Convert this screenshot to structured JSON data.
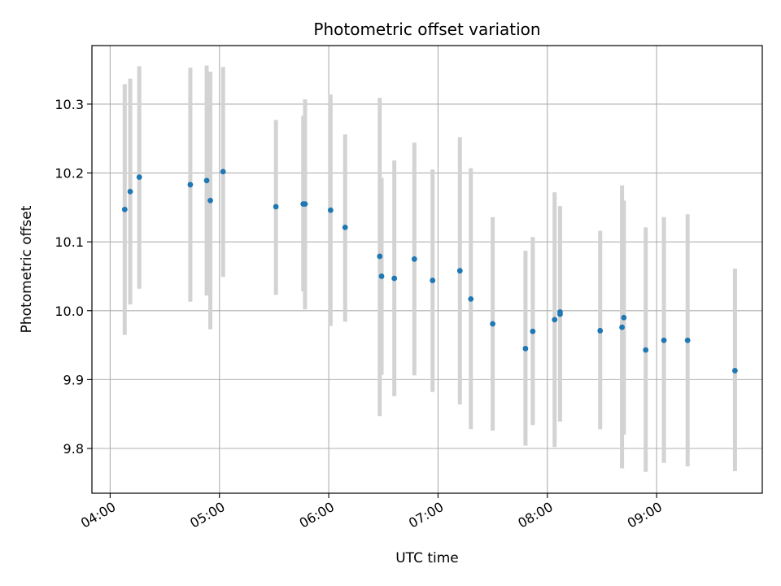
{
  "chart_data": {
    "type": "scatter",
    "title": "Photometric offset variation",
    "xlabel": "UTC time",
    "ylabel": "Photometric offset",
    "xlim": [
      "03:50",
      "09:58"
    ],
    "ylim": [
      9.735,
      10.385
    ],
    "grid": true,
    "x_ticks": [
      "04:00",
      "05:00",
      "06:00",
      "07:00",
      "08:00",
      "09:00"
    ],
    "y_ticks": [
      9.8,
      9.9,
      10.0,
      10.1,
      10.2,
      10.3
    ],
    "y_tick_labels": [
      "9.8",
      "9.9",
      "10.0",
      "10.1",
      "10.2",
      "10.3"
    ],
    "colors": {
      "points": "#1f77b4",
      "error_bars": "#d3d3d3",
      "grid": "#b0b0b0"
    },
    "series": [
      {
        "points": [
          {
            "x": "04:08",
            "y": 10.147,
            "ymin": 9.965,
            "ymax": 10.329
          },
          {
            "x": "04:11",
            "y": 10.173,
            "ymin": 10.009,
            "ymax": 10.337
          },
          {
            "x": "04:16",
            "y": 10.194,
            "ymin": 10.032,
            "ymax": 10.355
          },
          {
            "x": "04:44",
            "y": 10.183,
            "ymin": 10.013,
            "ymax": 10.353
          },
          {
            "x": "04:53",
            "y": 10.189,
            "ymin": 10.022,
            "ymax": 10.356
          },
          {
            "x": "04:55",
            "y": 10.16,
            "ymin": 9.973,
            "ymax": 10.347
          },
          {
            "x": "05:02",
            "y": 10.202,
            "ymin": 10.049,
            "ymax": 10.354
          },
          {
            "x": "05:31",
            "y": 10.151,
            "ymin": 10.023,
            "ymax": 10.277
          },
          {
            "x": "05:46",
            "y": 10.155,
            "ymin": 10.028,
            "ymax": 10.283
          },
          {
            "x": "05:47",
            "y": 10.155,
            "ymin": 10.002,
            "ymax": 10.307
          },
          {
            "x": "06:01",
            "y": 10.146,
            "ymin": 9.978,
            "ymax": 10.314
          },
          {
            "x": "06:09",
            "y": 10.121,
            "ymin": 9.984,
            "ymax": 10.256
          },
          {
            "x": "06:28",
            "y": 10.079,
            "ymin": 9.847,
            "ymax": 10.309
          },
          {
            "x": "06:29",
            "y": 10.05,
            "ymin": 9.907,
            "ymax": 10.193
          },
          {
            "x": "06:36",
            "y": 10.047,
            "ymin": 9.876,
            "ymax": 10.218
          },
          {
            "x": "06:47",
            "y": 10.075,
            "ymin": 9.906,
            "ymax": 10.244
          },
          {
            "x": "06:57",
            "y": 10.044,
            "ymin": 9.882,
            "ymax": 10.205
          },
          {
            "x": "07:12",
            "y": 10.058,
            "ymin": 9.864,
            "ymax": 10.252
          },
          {
            "x": "07:18",
            "y": 10.017,
            "ymin": 9.828,
            "ymax": 10.207
          },
          {
            "x": "07:30",
            "y": 9.981,
            "ymin": 9.826,
            "ymax": 10.136
          },
          {
            "x": "07:48",
            "y": 9.945,
            "ymin": 9.804,
            "ymax": 10.087
          },
          {
            "x": "07:52",
            "y": 9.97,
            "ymin": 9.834,
            "ymax": 10.107
          },
          {
            "x": "08:04",
            "y": 9.987,
            "ymin": 9.802,
            "ymax": 10.172
          },
          {
            "x": "08:07",
            "y": 9.995,
            "ymin": 9.839,
            "ymax": 10.152
          },
          {
            "x": "08:07",
            "y": 9.998,
            "ymin": 9.84,
            "ymax": 10.15
          },
          {
            "x": "08:29",
            "y": 9.971,
            "ymin": 9.828,
            "ymax": 10.116
          },
          {
            "x": "08:41",
            "y": 9.976,
            "ymin": 9.771,
            "ymax": 10.182
          },
          {
            "x": "08:42",
            "y": 9.99,
            "ymin": 9.82,
            "ymax": 10.16
          },
          {
            "x": "08:54",
            "y": 9.943,
            "ymin": 9.766,
            "ymax": 10.121
          },
          {
            "x": "09:04",
            "y": 9.957,
            "ymin": 9.779,
            "ymax": 10.136
          },
          {
            "x": "09:17",
            "y": 9.957,
            "ymin": 9.774,
            "ymax": 10.14
          },
          {
            "x": "09:43",
            "y": 9.913,
            "ymin": 9.767,
            "ymax": 10.061
          }
        ]
      }
    ]
  }
}
